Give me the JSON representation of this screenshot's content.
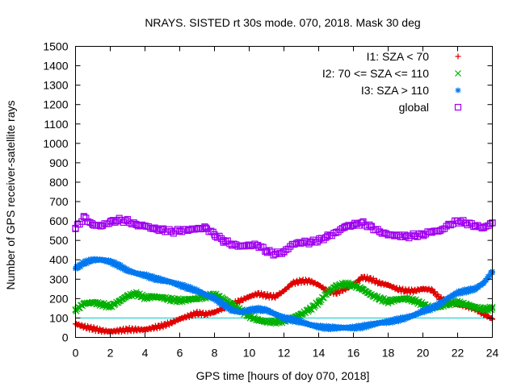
{
  "chart_data": {
    "type": "scatter",
    "title": "NRAYS. SISTED rt 30s mode. 070, 2018. Mask 30 deg",
    "xlabel": "GPS time [hours of doy 070, 2018]",
    "ylabel": "Number of GPS receiver-satellite rays",
    "xlim": [
      0,
      24
    ],
    "ylim": [
      0,
      1500
    ],
    "xticks": [
      0,
      2,
      4,
      6,
      8,
      10,
      12,
      14,
      16,
      18,
      20,
      22,
      24
    ],
    "yticks": [
      0,
      100,
      200,
      300,
      400,
      500,
      600,
      700,
      800,
      900,
      1000,
      1100,
      1200,
      1300,
      1400,
      1500
    ],
    "grid": false,
    "legend_position": "top-right",
    "reference_line": {
      "y": 100,
      "color": "#00c8c8"
    },
    "series": [
      {
        "name": "I1: SZA < 70",
        "marker": "+",
        "color": "#e00000",
        "x": [
          0,
          0.5,
          1,
          1.5,
          2,
          2.5,
          3,
          3.5,
          4,
          4.5,
          5,
          5.5,
          6,
          6.5,
          7,
          7.5,
          8,
          8.5,
          9,
          9.5,
          10,
          10.5,
          11,
          11.5,
          12,
          12.5,
          13,
          13.5,
          14,
          14.5,
          15,
          15.5,
          16,
          16.5,
          17,
          17.5,
          18,
          18.5,
          19,
          19.5,
          20,
          20.5,
          21,
          21.5,
          22,
          22.5,
          23,
          23.5,
          24
        ],
        "y": [
          70,
          55,
          45,
          35,
          30,
          35,
          40,
          40,
          40,
          50,
          60,
          75,
          95,
          110,
          125,
          120,
          130,
          150,
          170,
          190,
          210,
          225,
          215,
          210,
          240,
          280,
          290,
          290,
          270,
          240,
          230,
          250,
          270,
          310,
          300,
          280,
          270,
          250,
          240,
          240,
          250,
          245,
          200,
          180,
          170,
          160,
          150,
          120,
          95
        ]
      },
      {
        "name": "I2: 70 <= SZA <= 110",
        "marker": "x",
        "color": "#00b000",
        "x": [
          0,
          0.5,
          1,
          1.5,
          2,
          2.5,
          3,
          3.5,
          4,
          4.5,
          5,
          5.5,
          6,
          6.5,
          7,
          7.5,
          8,
          8.5,
          9,
          9.5,
          10,
          10.5,
          11,
          11.5,
          12,
          12.5,
          13,
          13.5,
          14,
          14.5,
          15,
          15.5,
          16,
          16.5,
          17,
          17.5,
          18,
          18.5,
          19,
          19.5,
          20,
          20.5,
          21,
          21.5,
          22,
          22.5,
          23,
          23.5,
          24
        ],
        "y": [
          140,
          175,
          180,
          170,
          160,
          185,
          215,
          225,
          205,
          210,
          205,
          195,
          190,
          195,
          200,
          210,
          220,
          200,
          170,
          140,
          110,
          90,
          80,
          80,
          85,
          100,
          120,
          145,
          180,
          230,
          265,
          275,
          270,
          250,
          220,
          200,
          185,
          195,
          200,
          190,
          170,
          150,
          160,
          175,
          180,
          170,
          155,
          145,
          150
        ]
      },
      {
        "name": "I3: SZA > 110",
        "marker": "*",
        "color": "#0078f0",
        "x": [
          0,
          0.5,
          1,
          1.5,
          2,
          2.5,
          3,
          3.5,
          4,
          4.5,
          5,
          5.5,
          6,
          6.5,
          7,
          7.5,
          8,
          8.5,
          9,
          9.5,
          10,
          10.5,
          11,
          11.5,
          12,
          12.5,
          13,
          13.5,
          14,
          14.5,
          15,
          15.5,
          16,
          16.5,
          17,
          17.5,
          18,
          18.5,
          19,
          19.5,
          20,
          20.5,
          21,
          21.5,
          22,
          22.5,
          23,
          23.5,
          24
        ],
        "y": [
          355,
          385,
          400,
          400,
          390,
          370,
          345,
          330,
          320,
          305,
          295,
          285,
          270,
          255,
          240,
          220,
          200,
          170,
          140,
          130,
          140,
          145,
          140,
          120,
          100,
          90,
          80,
          65,
          55,
          50,
          50,
          50,
          50,
          55,
          65,
          75,
          80,
          90,
          100,
          115,
          135,
          150,
          175,
          205,
          230,
          240,
          250,
          280,
          340
        ]
      },
      {
        "name": "global",
        "marker": "square",
        "color": "#a000f0",
        "x": [
          0,
          0.5,
          1,
          1.5,
          2,
          2.5,
          3,
          3.5,
          4,
          4.5,
          5,
          5.5,
          6,
          6.5,
          7,
          7.5,
          8,
          8.5,
          9,
          9.5,
          10,
          10.5,
          11,
          11.5,
          12,
          12.5,
          13,
          13.5,
          14,
          14.5,
          15,
          15.5,
          16,
          16.5,
          17,
          17.5,
          18,
          18.5,
          19,
          19.5,
          20,
          20.5,
          21,
          21.5,
          22,
          22.5,
          23,
          23.5,
          24
        ],
        "y": [
          560,
          620,
          580,
          575,
          595,
          605,
          600,
          580,
          575,
          560,
          555,
          545,
          550,
          555,
          560,
          565,
          530,
          500,
          480,
          470,
          475,
          475,
          445,
          430,
          440,
          480,
          490,
          490,
          500,
          520,
          540,
          570,
          580,
          590,
          570,
          545,
          530,
          525,
          520,
          525,
          530,
          545,
          550,
          580,
          600,
          590,
          575,
          565,
          590
        ]
      }
    ]
  }
}
